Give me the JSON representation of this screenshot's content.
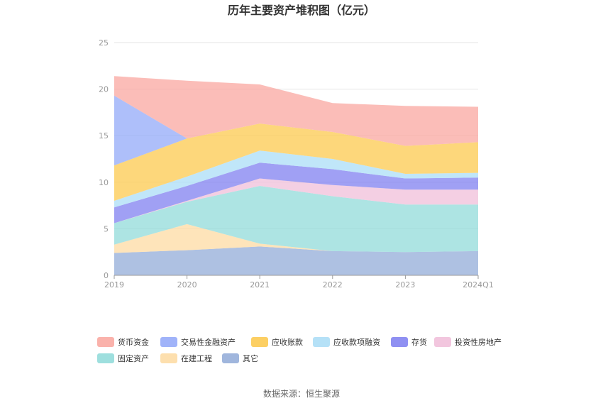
{
  "chart_data": {
    "type": "area",
    "stacked": true,
    "title": "历年主要资产堆积图（亿元）",
    "categories": [
      "2019",
      "2020",
      "2021",
      "2022",
      "2023",
      "2024Q1"
    ],
    "ylim": [
      0,
      25
    ],
    "yticks": [
      0,
      5,
      10,
      15,
      20,
      25
    ],
    "grid": true,
    "legend_position": "bottom",
    "series": [
      {
        "name": "其它",
        "color": "#8fa9d7",
        "values": [
          2.4,
          2.7,
          3.1,
          2.6,
          2.5,
          2.6
        ]
      },
      {
        "name": "在建工程",
        "color": "#fdd9a0",
        "values": [
          0.9,
          2.8,
          0.3,
          0.0,
          0.0,
          0.0
        ]
      },
      {
        "name": "固定资产",
        "color": "#8dd9d8",
        "values": [
          2.3,
          2.4,
          6.2,
          5.9,
          5.1,
          5.0
        ]
      },
      {
        "name": "投资性房地产",
        "color": "#f0bcd8",
        "values": [
          0.0,
          0.1,
          0.8,
          1.2,
          1.6,
          1.6
        ]
      },
      {
        "name": "存货",
        "color": "#7b7cf0",
        "values": [
          1.7,
          1.6,
          1.7,
          1.7,
          1.2,
          1.3
        ]
      },
      {
        "name": "应收款项融资",
        "color": "#a8dcf6",
        "values": [
          0.7,
          1.0,
          1.3,
          1.1,
          0.5,
          0.5
        ]
      },
      {
        "name": "应收账款",
        "color": "#fcc748",
        "values": [
          3.8,
          4.1,
          2.9,
          2.9,
          3.0,
          3.3
        ]
      },
      {
        "name": "交易性金融资产",
        "color": "#8fa6f8",
        "values": [
          7.5,
          0.0,
          0.0,
          0.0,
          0.0,
          0.0
        ]
      },
      {
        "name": "货币资金",
        "color": "#f9a49c",
        "values": [
          2.1,
          6.2,
          4.2,
          3.1,
          4.3,
          3.8
        ]
      }
    ],
    "legend_order": [
      "货币资金",
      "交易性金融资产",
      "应收账款",
      "应收款项融资",
      "存货",
      "投资性房地产",
      "固定资产",
      "在建工程",
      "其它"
    ]
  },
  "footer": {
    "source": "数据来源：恒生聚源"
  }
}
